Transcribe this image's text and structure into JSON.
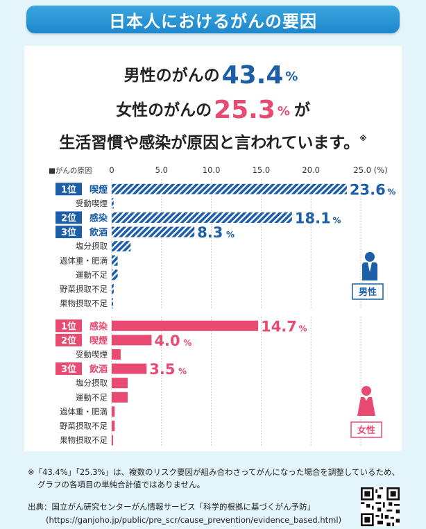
{
  "title": "日本人におけるがんの要因",
  "headline": {
    "line1_prefix": "男性のがんの",
    "line1_value": "43.4",
    "line1_unit": "%",
    "line2_prefix": "女性のがんの",
    "line2_value": "25.3",
    "line2_unit": "%",
    "line2_suffix": "が",
    "line3": "生活習慣や感染が原因と言われています。",
    "line3_mark": "※"
  },
  "chart_data": {
    "type": "bar",
    "orientation": "horizontal",
    "legend_label": "■がんの原因",
    "xlim": [
      0,
      25
    ],
    "x_ticks": [
      "0",
      "5.0",
      "10.0",
      "15.0",
      "20.0",
      "25.0 (%)"
    ],
    "grid": true,
    "colors": {
      "male": "#1c5ea8",
      "female": "#e84a72"
    },
    "series": [
      {
        "name": "男性",
        "bars": [
          {
            "rank": "1位",
            "label": "喫煙",
            "value": 23.6,
            "value_label": "23.6"
          },
          {
            "rank": "",
            "label": "受動喫煙",
            "value": 0.2,
            "value_label": ""
          },
          {
            "rank": "2位",
            "label": "感染",
            "value": 18.1,
            "value_label": "18.1"
          },
          {
            "rank": "3位",
            "label": "飲酒",
            "value": 8.3,
            "value_label": "8.3"
          },
          {
            "rank": "",
            "label": "塩分摂取",
            "value": 1.9,
            "value_label": ""
          },
          {
            "rank": "",
            "label": "過体重・肥満",
            "value": 0.6,
            "value_label": ""
          },
          {
            "rank": "",
            "label": "運動不足",
            "value": 0.6,
            "value_label": ""
          },
          {
            "rank": "",
            "label": "野菜摂取不足",
            "value": 0.2,
            "value_label": ""
          },
          {
            "rank": "",
            "label": "果物摂取不足",
            "value": 0.1,
            "value_label": ""
          }
        ]
      },
      {
        "name": "女性",
        "bars": [
          {
            "rank": "1位",
            "label": "感染",
            "value": 14.7,
            "value_label": "14.7"
          },
          {
            "rank": "2位",
            "label": "喫煙",
            "value": 4.0,
            "value_label": "4.0"
          },
          {
            "rank": "",
            "label": "受動喫煙",
            "value": 0.9,
            "value_label": ""
          },
          {
            "rank": "3位",
            "label": "飲酒",
            "value": 3.5,
            "value_label": "3.5"
          },
          {
            "rank": "",
            "label": "塩分摂取",
            "value": 1.6,
            "value_label": ""
          },
          {
            "rank": "",
            "label": "運動不足",
            "value": 1.6,
            "value_label": ""
          },
          {
            "rank": "",
            "label": "過体重・肥満",
            "value": 0.3,
            "value_label": ""
          },
          {
            "rank": "",
            "label": "野菜摂取不足",
            "value": 0.3,
            "value_label": ""
          },
          {
            "rank": "",
            "label": "果物摂取不足",
            "value": 0.1,
            "value_label": ""
          }
        ]
      }
    ],
    "value_unit": "%"
  },
  "footnote": {
    "line1": "※「43.4%」「25.3%」は、複数のリスク要因が組み合わさってがんになった場合を調整しているため、",
    "line2": "グラフの各項目の単純合計値ではありません。"
  },
  "source": {
    "line1": "出典：国立がん研究センターがん情報サービス「科学的根拠に基づくがん予防」",
    "line2": "(https://ganjoho.jp/public/pre_scr/cause_prevention/evidence_based.html)"
  },
  "icons": {
    "male": "male-person-icon",
    "female": "female-person-icon",
    "qr": "qr-code-icon"
  }
}
